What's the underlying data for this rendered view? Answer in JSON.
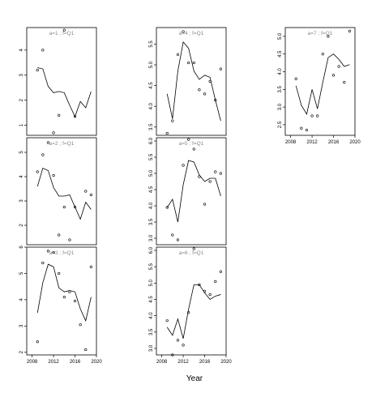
{
  "chart_data": {
    "type": "line",
    "xlabel": "Year",
    "style": {
      "line_color": "#000000",
      "point_color": "#000000",
      "panel_label_color": "#888888",
      "background": "#ffffff"
    },
    "xlim": [
      2007,
      2020
    ],
    "xticks": [
      2008,
      2012,
      2016,
      2020
    ],
    "panels": [
      {
        "label": "a=1 ; f=Q1",
        "ylim": [
          0.6,
          4.9
        ],
        "yticks": [
          1,
          2,
          3,
          4
        ],
        "line_x": [
          2009,
          2010,
          2011,
          2012,
          2013,
          2014,
          2015,
          2016,
          2017,
          2018,
          2019
        ],
        "line_y": [
          3.3,
          3.25,
          2.55,
          2.3,
          2.35,
          2.3,
          1.8,
          1.35,
          1.95,
          1.7,
          2.35
        ],
        "points": [
          [
            2009,
            3.2
          ],
          [
            2010,
            4.0
          ],
          [
            2012,
            0.7
          ],
          [
            2013,
            1.4
          ],
          [
            2014,
            4.8
          ],
          [
            2016,
            1.35
          ]
        ]
      },
      {
        "label": "a=2 ; f=Q1",
        "ylim": [
          1.2,
          5.6
        ],
        "yticks": [
          2,
          3,
          4,
          5
        ],
        "line_x": [
          2009,
          2010,
          2011,
          2012,
          2013,
          2014,
          2015,
          2016,
          2017,
          2018,
          2019
        ],
        "line_y": [
          3.6,
          4.35,
          4.25,
          3.55,
          3.2,
          3.2,
          3.25,
          2.75,
          2.25,
          2.95,
          2.65
        ],
        "points": [
          [
            2009,
            4.2
          ],
          [
            2010,
            4.9
          ],
          [
            2011,
            5.4
          ],
          [
            2012,
            4.05
          ],
          [
            2013,
            1.6
          ],
          [
            2014,
            2.75
          ],
          [
            2015,
            1.4
          ],
          [
            2016,
            2.75
          ],
          [
            2018,
            3.4
          ],
          [
            2019,
            3.25
          ]
        ]
      },
      {
        "label": "a=3 ; f=Q1",
        "ylim": [
          1.9,
          6.0
        ],
        "yticks": [
          2,
          3,
          4,
          5,
          6
        ],
        "line_x": [
          2009,
          2010,
          2011,
          2012,
          2013,
          2014,
          2015,
          2016,
          2017,
          2018,
          2019
        ],
        "line_y": [
          3.5,
          4.65,
          5.35,
          5.25,
          4.45,
          4.3,
          4.35,
          4.3,
          3.65,
          3.2,
          4.1
        ],
        "points": [
          [
            2009,
            2.4
          ],
          [
            2010,
            5.4
          ],
          [
            2011,
            5.85
          ],
          [
            2012,
            5.8
          ],
          [
            2013,
            5.0
          ],
          [
            2014,
            4.1
          ],
          [
            2015,
            4.3
          ],
          [
            2016,
            3.95
          ],
          [
            2017,
            3.05
          ],
          [
            2018,
            2.1
          ],
          [
            2019,
            5.25
          ]
        ]
      },
      {
        "label": "a=4 ; f=Q1",
        "ylim": [
          3.3,
          5.9
        ],
        "yticks": [
          3.5,
          4.0,
          4.5,
          5.0,
          5.5
        ],
        "line_x": [
          2009,
          2010,
          2011,
          2012,
          2013,
          2014,
          2015,
          2016,
          2017,
          2018,
          2019
        ],
        "line_y": [
          4.3,
          3.7,
          4.85,
          5.55,
          5.4,
          4.85,
          4.65,
          4.75,
          4.7,
          4.15,
          3.65
        ],
        "points": [
          [
            2009,
            3.35
          ],
          [
            2010,
            3.65
          ],
          [
            2011,
            5.25
          ],
          [
            2012,
            5.8
          ],
          [
            2013,
            5.05
          ],
          [
            2014,
            5.05
          ],
          [
            2015,
            4.4
          ],
          [
            2016,
            4.3
          ],
          [
            2017,
            4.6
          ],
          [
            2018,
            4.15
          ],
          [
            2019,
            4.9
          ]
        ]
      },
      {
        "label": "a=5 ; f=Q1",
        "ylim": [
          2.8,
          6.1
        ],
        "yticks": [
          3.0,
          3.5,
          4.0,
          4.5,
          5.0,
          5.5,
          6.0
        ],
        "line_x": [
          2009,
          2010,
          2011,
          2012,
          2013,
          2014,
          2015,
          2016,
          2017,
          2018,
          2019
        ],
        "line_y": [
          3.95,
          4.2,
          3.5,
          4.65,
          5.4,
          5.35,
          4.95,
          4.75,
          4.85,
          4.85,
          4.3
        ],
        "points": [
          [
            2009,
            3.95
          ],
          [
            2010,
            3.1
          ],
          [
            2011,
            2.95
          ],
          [
            2012,
            5.25
          ],
          [
            2013,
            6.05
          ],
          [
            2014,
            5.75
          ],
          [
            2015,
            4.9
          ],
          [
            2016,
            4.05
          ],
          [
            2017,
            4.75
          ],
          [
            2018,
            5.05
          ],
          [
            2019,
            5.0
          ]
        ]
      },
      {
        "label": "a=6 ; f=Q1",
        "ylim": [
          2.8,
          6.1
        ],
        "yticks": [
          3.0,
          3.5,
          4.0,
          4.5,
          5.0,
          5.5,
          6.0
        ],
        "line_x": [
          2009,
          2010,
          2011,
          2012,
          2013,
          2014,
          2015,
          2016,
          2017,
          2018,
          2019
        ],
        "line_y": [
          3.65,
          3.4,
          3.9,
          3.3,
          4.2,
          4.95,
          4.95,
          4.7,
          4.5,
          4.6,
          4.65
        ],
        "points": [
          [
            2009,
            3.85
          ],
          [
            2010,
            2.8
          ],
          [
            2011,
            3.25
          ],
          [
            2012,
            3.1
          ],
          [
            2013,
            4.1
          ],
          [
            2014,
            6.05
          ],
          [
            2015,
            4.95
          ],
          [
            2016,
            4.75
          ],
          [
            2017,
            4.65
          ],
          [
            2018,
            5.05
          ],
          [
            2019,
            5.35
          ]
        ]
      },
      {
        "label": "a=7 ; f=Q1",
        "ylim": [
          2.2,
          5.25
        ],
        "yticks": [
          2.5,
          3.0,
          3.5,
          4.0,
          4.5,
          5.0
        ],
        "line_x": [
          2009,
          2010,
          2011,
          2012,
          2013,
          2014,
          2015,
          2016,
          2017,
          2018,
          2019
        ],
        "line_y": [
          3.6,
          3.05,
          2.8,
          3.5,
          2.95,
          3.7,
          4.4,
          4.5,
          4.35,
          4.15,
          4.2
        ],
        "points": [
          [
            2009,
            3.8
          ],
          [
            2010,
            2.4
          ],
          [
            2011,
            2.35
          ],
          [
            2012,
            2.75
          ],
          [
            2013,
            2.75
          ],
          [
            2014,
            4.5
          ],
          [
            2015,
            5.0
          ],
          [
            2016,
            3.9
          ],
          [
            2017,
            4.15
          ],
          [
            2018,
            3.7
          ],
          [
            2019,
            5.15
          ]
        ]
      }
    ]
  }
}
